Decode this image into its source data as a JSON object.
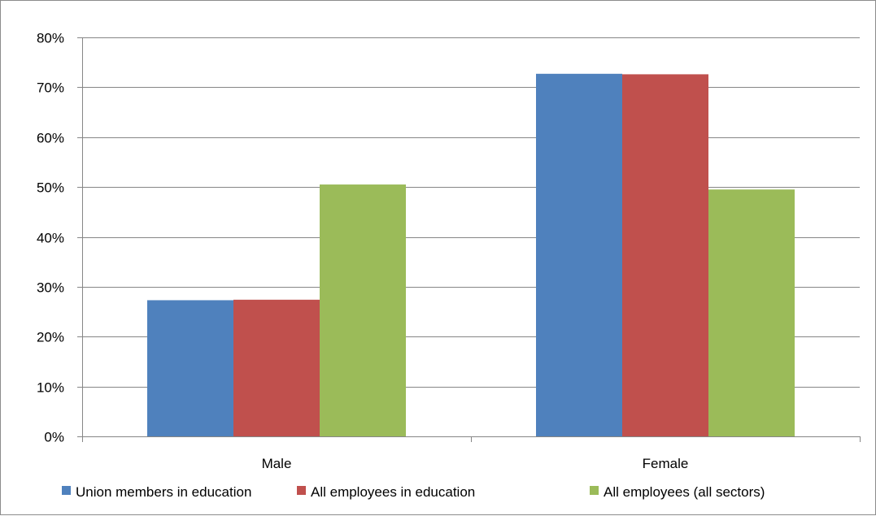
{
  "chart_data": {
    "type": "bar",
    "categories": [
      "Male",
      "Female"
    ],
    "series": [
      {
        "name": "Union members in education",
        "color": "#4F81BD",
        "values": [
          27.3,
          72.7
        ]
      },
      {
        "name": "All employees in education",
        "color": "#C0504D",
        "values": [
          27.4,
          72.6
        ]
      },
      {
        "name": "All employees (all sectors)",
        "color": "#9BBB59",
        "values": [
          50.5,
          49.5
        ]
      }
    ],
    "ylim": [
      0,
      80
    ],
    "yticks": [
      0,
      10,
      20,
      30,
      40,
      50,
      60,
      70,
      80
    ],
    "ytick_labels": [
      "0%",
      "10%",
      "20%",
      "30%",
      "40%",
      "50%",
      "60%",
      "70%",
      "80%"
    ],
    "title": "",
    "xlabel": "",
    "ylabel": "",
    "grid": true,
    "legend_position": "bottom"
  }
}
